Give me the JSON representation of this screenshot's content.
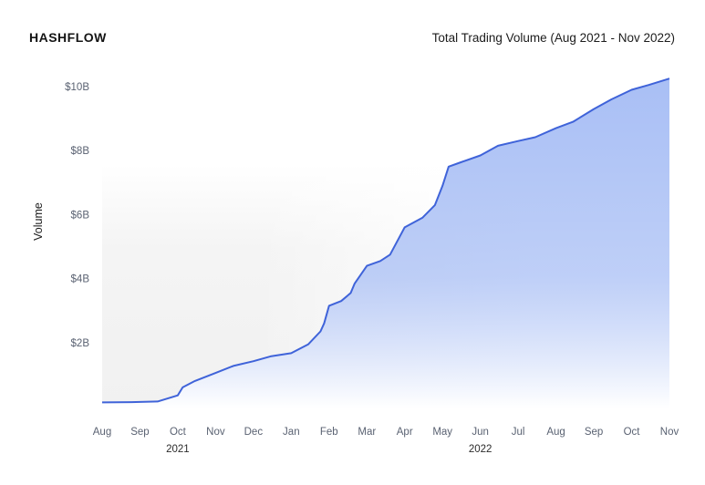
{
  "logo": {
    "text": "HASHFLOW"
  },
  "chart_data": {
    "type": "area",
    "title": "Total Trading Volume (Aug 2021 - Nov 2022)",
    "ylabel": "Volume",
    "xlabel": "",
    "x_ticks": [
      "Aug",
      "Sep",
      "Oct",
      "Nov",
      "Dec",
      "Jan",
      "Feb",
      "Mar",
      "Apr",
      "May",
      "Jun",
      "Jul",
      "Aug",
      "Sep",
      "Oct",
      "Nov"
    ],
    "year_labels": [
      {
        "label": "2021",
        "month_index": 2
      },
      {
        "label": "2022",
        "month_index": 10
      }
    ],
    "y_ticks": [
      {
        "value": 2,
        "label": "$2B"
      },
      {
        "value": 4,
        "label": "$4B"
      },
      {
        "value": 6,
        "label": "$6B"
      },
      {
        "value": 8,
        "label": "$8B"
      },
      {
        "value": 10,
        "label": "$10B"
      }
    ],
    "ylim": [
      0,
      10.5
    ],
    "y_unit": "billion USD",
    "grid": false,
    "colors": {
      "line": "#3f63d9",
      "fill": "#a9bff5",
      "background_shade": "#f1f1f1"
    },
    "series": [
      {
        "points": [
          {
            "x": "2021-08-01",
            "y": 0.13
          },
          {
            "x": "2021-08-25",
            "y": 0.14
          },
          {
            "x": "2021-09-15",
            "y": 0.16
          },
          {
            "x": "2021-10-01",
            "y": 0.35
          },
          {
            "x": "2021-10-05",
            "y": 0.6
          },
          {
            "x": "2021-10-15",
            "y": 0.8
          },
          {
            "x": "2021-11-01",
            "y": 1.05
          },
          {
            "x": "2021-11-15",
            "y": 1.27
          },
          {
            "x": "2021-12-01",
            "y": 1.42
          },
          {
            "x": "2021-12-15",
            "y": 1.57
          },
          {
            "x": "2022-01-01",
            "y": 1.67
          },
          {
            "x": "2022-01-15",
            "y": 1.95
          },
          {
            "x": "2022-01-25",
            "y": 2.35
          },
          {
            "x": "2022-01-28",
            "y": 2.6
          },
          {
            "x": "2022-02-01",
            "y": 3.15
          },
          {
            "x": "2022-02-10",
            "y": 3.3
          },
          {
            "x": "2022-02-17",
            "y": 3.55
          },
          {
            "x": "2022-02-20",
            "y": 3.85
          },
          {
            "x": "2022-03-01",
            "y": 4.4
          },
          {
            "x": "2022-03-12",
            "y": 4.55
          },
          {
            "x": "2022-03-20",
            "y": 4.75
          },
          {
            "x": "2022-04-01",
            "y": 5.6
          },
          {
            "x": "2022-04-15",
            "y": 5.9
          },
          {
            "x": "2022-04-25",
            "y": 6.3
          },
          {
            "x": "2022-05-01",
            "y": 6.9
          },
          {
            "x": "2022-05-06",
            "y": 7.5
          },
          {
            "x": "2022-05-15",
            "y": 7.62
          },
          {
            "x": "2022-06-01",
            "y": 7.85
          },
          {
            "x": "2022-06-15",
            "y": 8.15
          },
          {
            "x": "2022-07-01",
            "y": 8.3
          },
          {
            "x": "2022-07-15",
            "y": 8.42
          },
          {
            "x": "2022-08-01",
            "y": 8.7
          },
          {
            "x": "2022-08-15",
            "y": 8.9
          },
          {
            "x": "2022-09-01",
            "y": 9.3
          },
          {
            "x": "2022-09-15",
            "y": 9.6
          },
          {
            "x": "2022-10-01",
            "y": 9.9
          },
          {
            "x": "2022-10-15",
            "y": 10.05
          },
          {
            "x": "2022-11-01",
            "y": 10.25
          }
        ]
      }
    ]
  }
}
